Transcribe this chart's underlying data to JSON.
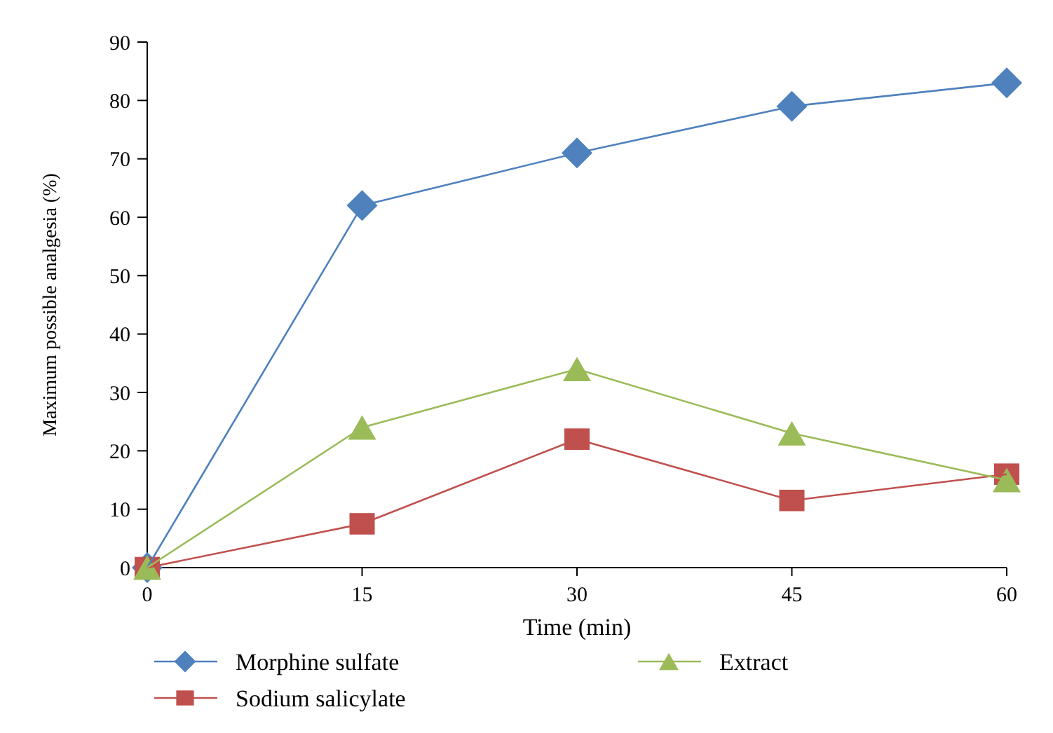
{
  "chart_data": {
    "type": "line",
    "xlabel": "Time (min)",
    "ylabel": "Maximum possible analgesia (%)",
    "x": [
      0,
      15,
      30,
      45,
      60
    ],
    "xlim": [
      0,
      60
    ],
    "xticks": [
      0,
      15,
      30,
      45,
      60
    ],
    "ylim": [
      0,
      90
    ],
    "yticks": [
      0,
      10,
      20,
      30,
      40,
      50,
      60,
      70,
      80,
      90
    ],
    "legend": "bottom",
    "grid": false,
    "series": [
      {
        "name": "Morphine sulfate",
        "color": "#4f81bd",
        "marker": "diamond",
        "values": [
          0,
          62,
          71,
          79,
          83
        ]
      },
      {
        "name": "Sodium salicylate",
        "color": "#c0504d",
        "marker": "square",
        "values": [
          0,
          7.5,
          22,
          11.5,
          16
        ]
      },
      {
        "name": "Extract",
        "color": "#9bbb59",
        "marker": "triangle",
        "values": [
          0,
          24,
          34,
          23,
          15
        ]
      }
    ]
  }
}
